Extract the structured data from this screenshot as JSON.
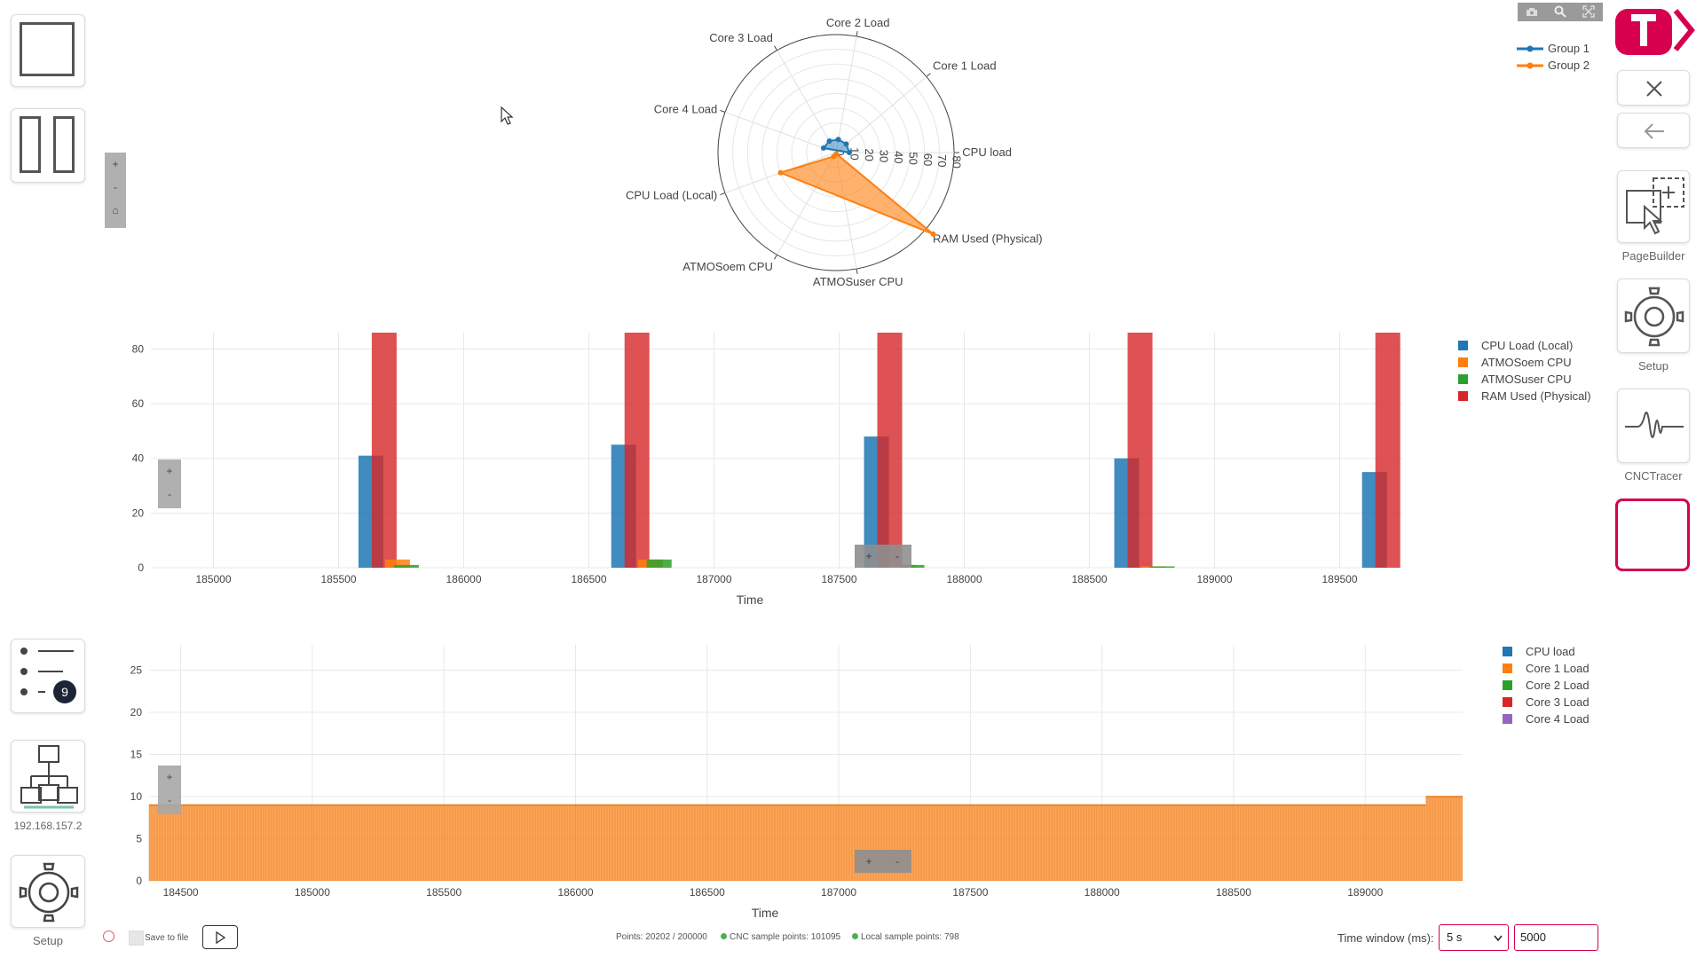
{
  "left_panel": {
    "setup_label": "Setup",
    "ip_label": "192.168.157.2",
    "list_badge": "9"
  },
  "right_panel": {
    "pagebuilder_label": "PageBuilder",
    "setup_label": "Setup",
    "cnctracer_label": "CNCTracer"
  },
  "zoom_buttons": {
    "plus": "+",
    "minus": "-",
    "home": "⌂"
  },
  "radar_chart": {
    "axes": [
      "CPU load",
      "Core 1 Load",
      "Core 2 Load",
      "Core 3 Load",
      "Core 4 Load",
      "CPU Load (Local)",
      "ATMOSoem CPU",
      "ATMOSuser CPU",
      "RAM Used (Physical)"
    ],
    "radial_ticks": [
      "0",
      "10",
      "20",
      "30",
      "40",
      "50",
      "60",
      "70",
      "80"
    ],
    "legend": [
      {
        "name": "Group 1",
        "color": "#1f77b4"
      },
      {
        "name": "Group 2",
        "color": "#ff7f0e"
      }
    ]
  },
  "bar_chart": {
    "x_ticks": [
      "185000",
      "185500",
      "186000",
      "186500",
      "187000",
      "187500",
      "188000",
      "188500",
      "189000",
      "189500"
    ],
    "y_ticks": [
      "0",
      "20",
      "40",
      "60",
      "80"
    ],
    "xlabel": "Time",
    "legend": [
      {
        "name": "CPU Load (Local)",
        "color": "#1f77b4"
      },
      {
        "name": "ATMOSoem CPU",
        "color": "#ff7f0e"
      },
      {
        "name": "ATMOSuser CPU",
        "color": "#2ca02c"
      },
      {
        "name": "RAM Used (Physical)",
        "color": "#d62728"
      }
    ]
  },
  "line_chart": {
    "x_ticks": [
      "184500",
      "185000",
      "185500",
      "186000",
      "186500",
      "187000",
      "187500",
      "188000",
      "188500",
      "189000"
    ],
    "y_ticks": [
      "0",
      "5",
      "10",
      "15",
      "20",
      "25"
    ],
    "xlabel": "Time",
    "legend": [
      {
        "name": "CPU load",
        "color": "#1f77b4"
      },
      {
        "name": "Core 1 Load",
        "color": "#ff7f0e"
      },
      {
        "name": "Core 2 Load",
        "color": "#2ca02c"
      },
      {
        "name": "Core 3 Load",
        "color": "#d62728"
      },
      {
        "name": "Core 4 Load",
        "color": "#9467bd"
      }
    ]
  },
  "chart_data": [
    {
      "type": "radar",
      "r_range": [
        0,
        80
      ],
      "axes": [
        "CPU load",
        "Core 1 Load",
        "Core 2 Load",
        "Core 3 Load",
        "Core 4 Load",
        "CPU Load (Local)",
        "ATMOSoem CPU",
        "ATMOSuser CPU",
        "RAM Used (Physical)"
      ],
      "series": [
        {
          "name": "Group 1",
          "values": [
            9,
            9,
            9,
            9,
            9,
            null,
            null,
            null,
            null
          ]
        },
        {
          "name": "Group 2",
          "values": [
            null,
            null,
            null,
            null,
            null,
            40,
            3,
            1,
            86
          ]
        }
      ]
    },
    {
      "type": "bar",
      "x": [
        185700,
        186710,
        187720,
        188720,
        189710
      ],
      "xlim": [
        184750,
        189750
      ],
      "ylim": [
        0,
        86
      ],
      "xlabel": "Time",
      "series": [
        {
          "name": "CPU Load (Local)",
          "values": [
            41,
            45,
            48,
            40,
            35
          ]
        },
        {
          "name": "ATMOSoem CPU",
          "values": [
            3,
            3,
            1,
            0.5,
            0
          ]
        },
        {
          "name": "ATMOSuser CPU",
          "values": [
            1,
            3,
            1,
            0.5,
            0
          ]
        },
        {
          "name": "RAM Used (Physical)",
          "values": [
            86,
            86,
            86,
            86,
            86
          ]
        }
      ]
    },
    {
      "type": "area",
      "x_range": [
        184380,
        189370
      ],
      "ylim": [
        0,
        28
      ],
      "xlabel": "Time",
      "series": [
        {
          "name": "Core 1 Load",
          "values_description": "constant",
          "level": 9,
          "level_end": 10,
          "step_at": 189230
        }
      ]
    }
  ],
  "bottom_bar": {
    "save_label": "Save to file",
    "points": "Points: 20202 / 200000",
    "cnc_points": "CNC sample points: 101095",
    "local_points": "Local sample points: 798",
    "time_window_label": "Time window (ms):",
    "time_window_select": "5 s",
    "time_window_value": "5000"
  }
}
